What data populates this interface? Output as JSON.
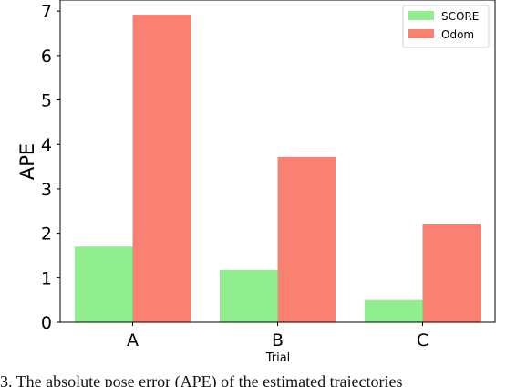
{
  "chart_data": {
    "type": "bar",
    "categories": [
      "A",
      "B",
      "C"
    ],
    "series": [
      {
        "name": "SCORE",
        "values": [
          1.7,
          1.17,
          0.5
        ],
        "color": "#90ee90"
      },
      {
        "name": "Odom",
        "values": [
          6.92,
          3.72,
          2.22
        ],
        "color": "#fa8072"
      }
    ],
    "title": "",
    "xlabel": "Trial",
    "ylabel": "APE",
    "ylim": [
      0,
      7.25
    ],
    "yticks": [
      0,
      1,
      2,
      3,
      4,
      5,
      6,
      7
    ],
    "grid": false,
    "legend_position": "top-right"
  },
  "caption": "3.   The absolute pose error (APE) of the estimated trajectories"
}
